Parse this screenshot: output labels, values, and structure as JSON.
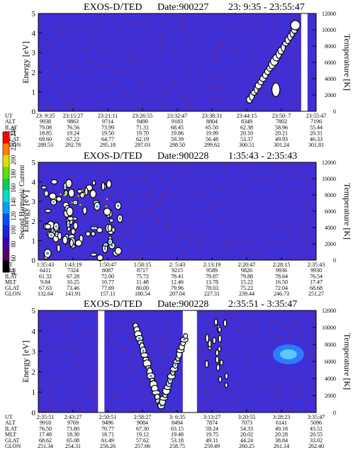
{
  "chart_data": [
    {
      "type": "heatmap",
      "title": "EXOS-D/TED",
      "date_label": "Date:900227",
      "time_range": "23: 9:35 - 23:55:47",
      "ylabel": "Energy [eV]",
      "ylim": [
        0,
        5
      ],
      "yticks": [
        "0",
        "1",
        "2",
        "3",
        "4",
        "5"
      ],
      "y2label": "Temperature [K]",
      "y2lim": [
        0,
        12000
      ],
      "y2ticks": [
        "0",
        "2000",
        "4000",
        "6000",
        "8000",
        "10000",
        "12000"
      ],
      "row_labels": [
        "UT",
        "ALT",
        "ILAT",
        "MLT",
        "GLAT",
        "GLON"
      ],
      "columns": [
        [
          "23: 9:35",
          "9938",
          "79.08",
          "18.85",
          "69.60",
          "289.53"
        ],
        [
          "23:15:27",
          "9863",
          "76.56",
          "19.24",
          "67.22",
          "292.78"
        ],
        [
          "23:21:11",
          "9714",
          "73.99",
          "19.50",
          "64.77",
          "295.18"
        ],
        [
          "23:26:55",
          "9490",
          "71.31",
          "19.70",
          "62.19",
          "297.03"
        ],
        [
          "23:32:47",
          "9183",
          "68.45",
          "19.86",
          "59.39",
          "298.50"
        ],
        [
          "23:38:31",
          "8804",
          "65.50",
          "19.99",
          "56.48",
          "299.62"
        ],
        [
          "23:44:15",
          "8349",
          "62.38",
          "20.10",
          "53.37",
          "300.51"
        ],
        [
          "23:50: 7",
          "7802",
          "58.96",
          "20.21",
          "49.93",
          "301.24"
        ],
        [
          "23:55:47",
          "7196",
          "55.44",
          "20.31",
          "46.33",
          "301.81"
        ]
      ]
    },
    {
      "type": "heatmap",
      "title": "EXOS-D/TED",
      "date_label": "Date:900228",
      "time_range": "1:35:43 - 2:35:43",
      "ylabel": "Energy [eV]",
      "ylim": [
        0,
        5
      ],
      "yticks": [
        "0",
        "1",
        "2",
        "3",
        "4",
        "5"
      ],
      "y2label": "Temperature [K]",
      "y2lim": [
        0,
        12000
      ],
      "y2ticks": [
        "0",
        "2000",
        "4000",
        "6000",
        "8000",
        "10000",
        "12000"
      ],
      "row_labels": [
        "UT",
        "ALT",
        "ILAT",
        "MLT",
        "GLAT",
        "GLON"
      ],
      "columns": [
        [
          "1:35:43",
          "6411",
          "61.32",
          "9.84",
          "67.63",
          "132.64"
        ],
        [
          "1:43:19",
          "7324",
          "67.28",
          "10.25",
          "73.46",
          "141.91"
        ],
        [
          "1:50:47",
          "8087",
          "72.00",
          "10.77",
          "77.69",
          "157.11"
        ],
        [
          "1:58:15",
          "8717",
          "75.72",
          "11.48",
          "80.00",
          "180.54"
        ],
        [
          "2: 5:43",
          "9215",
          "78.41",
          "12.46",
          "79.96",
          "207.04"
        ],
        [
          "2:13:19",
          "9589",
          "79.87",
          "13.78",
          "78.03",
          "227.31"
        ],
        [
          "2:20:47",
          "9826",
          "79.88",
          "15.22",
          "75.22",
          "239.44"
        ],
        [
          "2:28:15",
          "9936",
          "78.64",
          "16.50",
          "72.04",
          "246.73"
        ],
        [
          "2:35:43",
          "9930",
          "76.54",
          "17.47",
          "68.68",
          "251.27"
        ]
      ]
    },
    {
      "type": "heatmap",
      "title": "EXOS-D/TED",
      "date_label": "Date:900228",
      "time_range": "2:35:51 - 3:35:47",
      "ylabel": "Energy [eV]",
      "ylim": [
        0,
        5
      ],
      "yticks": [
        "0",
        "1",
        "2",
        "3",
        "4",
        "5"
      ],
      "y2label": "Temperature [K]",
      "y2lim": [
        0,
        12000
      ],
      "y2ticks": [
        "0",
        "2000",
        "4000",
        "6000",
        "8000",
        "10000",
        "12000"
      ],
      "row_labels": [
        "UT",
        "ALT",
        "ILAT",
        "MLT",
        "GLAT",
        "GLON"
      ],
      "columns": [
        [
          "2:35:51",
          "9918",
          "76.50",
          "17.48",
          "68.62",
          "251.34"
        ],
        [
          "2:43:27",
          "9769",
          "73.80",
          "18.30",
          "65.08",
          "254.31"
        ],
        [
          "2:50:51",
          "9496",
          "70.77",
          "18.71",
          "61.49",
          "256.26"
        ],
        [
          "2:58:27",
          "9084",
          "67.30",
          "19.12",
          "57.62",
          "257.66"
        ],
        [
          "3: 6:35",
          "8494",
          "63.15",
          "19.48",
          "53.18",
          "258.75"
        ],
        [
          "3:13:27",
          "7874",
          "59.24",
          "19.75",
          "49.11",
          "259.49"
        ],
        [
          "3:20:55",
          "7073",
          "54.33",
          "20.02",
          "44.24",
          "260.25"
        ],
        [
          "3:28:23",
          "6141",
          "49.18",
          "20.28",
          "38.84",
          "261.14"
        ],
        [
          "3:35:47",
          "5096",
          "43.51",
          "20.55",
          "33.02",
          "262.40"
        ]
      ]
    }
  ],
  "colorbar": {
    "label": "Second Harmonic Current",
    "ticks": [
      "40",
      "60",
      "80",
      "100",
      "120",
      "140",
      "160",
      "180",
      "200",
      "220",
      "240"
    ],
    "colors": [
      "#000000",
      "#5a0066",
      "#3a00b0",
      "#2020e0",
      "#0050ff",
      "#00a0ff",
      "#00e0d0",
      "#00d060",
      "#60e000",
      "#e0e000",
      "#ff8000",
      "#ff0000"
    ]
  },
  "colors": {
    "background_field": "#3e2fd6",
    "speckle": "#8a2150",
    "event_fill": "#ffffff",
    "event_edge": "#000000",
    "event_core": "#2a9cff"
  }
}
